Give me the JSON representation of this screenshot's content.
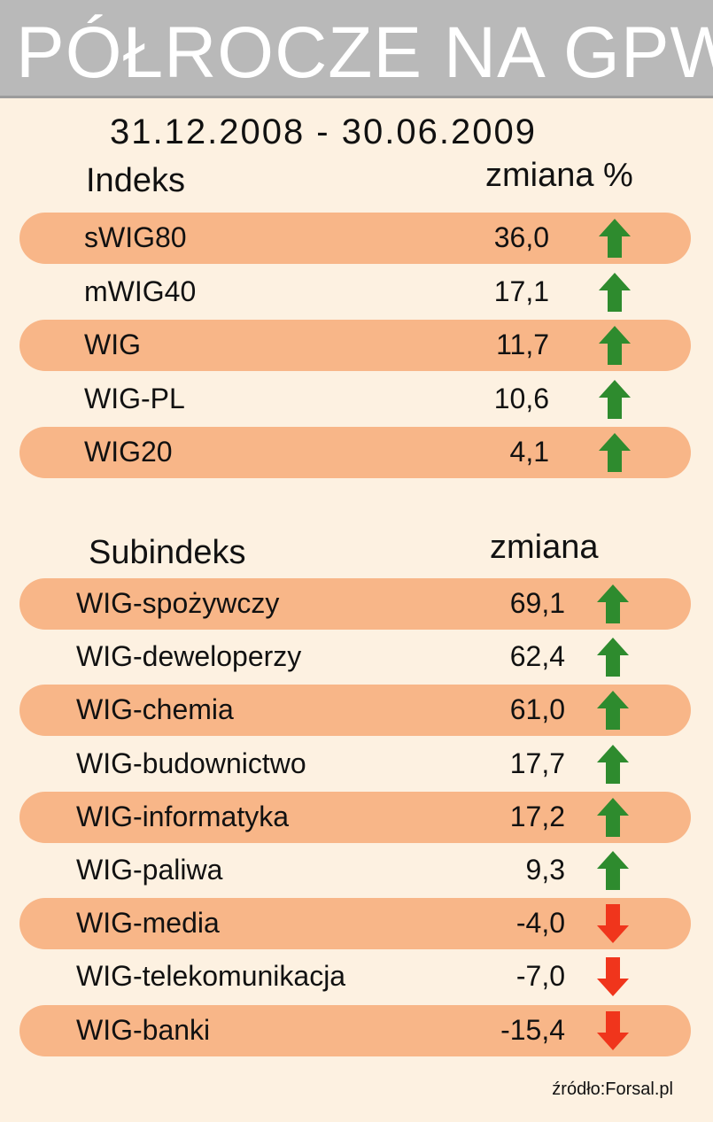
{
  "title": "PÓŁROCZE NA GPW",
  "period": "31.12.2008 - 30.06.2009",
  "colors": {
    "band": "#f8b688",
    "up": "#2e8b2e",
    "down": "#f0351c",
    "title_bg": "#b9b9b9",
    "background": "#fdf1e1"
  },
  "source": "źródło:Forsal.pl",
  "chart_data": {
    "type": "table",
    "sections": [
      {
        "header": "Indeks",
        "value_header": "zmiana %",
        "rows": [
          {
            "name": "sWIG80",
            "display": "36,0",
            "value": 36.0,
            "direction": "up"
          },
          {
            "name": "mWIG40",
            "display": "17,1",
            "value": 17.1,
            "direction": "up"
          },
          {
            "name": "WIG",
            "display": "11,7",
            "value": 11.7,
            "direction": "up"
          },
          {
            "name": "WIG-PL",
            "display": "10,6",
            "value": 10.6,
            "direction": "up"
          },
          {
            "name": "WIG20",
            "display": "4,1",
            "value": 4.1,
            "direction": "up"
          }
        ]
      },
      {
        "header": "Subindeks",
        "value_header": "zmiana",
        "rows": [
          {
            "name": "WIG-spożywczy",
            "display": "69,1",
            "value": 69.1,
            "direction": "up"
          },
          {
            "name": "WIG-deweloperzy",
            "display": "62,4",
            "value": 62.4,
            "direction": "up"
          },
          {
            "name": "WIG-chemia",
            "display": "61,0",
            "value": 61.0,
            "direction": "up"
          },
          {
            "name": "WIG-budownictwo",
            "display": "17,7",
            "value": 17.7,
            "direction": "up"
          },
          {
            "name": "WIG-informatyka",
            "display": "17,2",
            "value": 17.2,
            "direction": "up"
          },
          {
            "name": "WIG-paliwa",
            "display": "9,3",
            "value": 9.3,
            "direction": "up"
          },
          {
            "name": "WIG-media",
            "display": "-4,0",
            "value": -4.0,
            "direction": "down"
          },
          {
            "name": "WIG-telekomunikacja",
            "display": "-7,0",
            "value": -7.0,
            "direction": "down"
          },
          {
            "name": "WIG-banki",
            "display": "-15,4",
            "value": -15.4,
            "direction": "down"
          }
        ]
      }
    ]
  }
}
